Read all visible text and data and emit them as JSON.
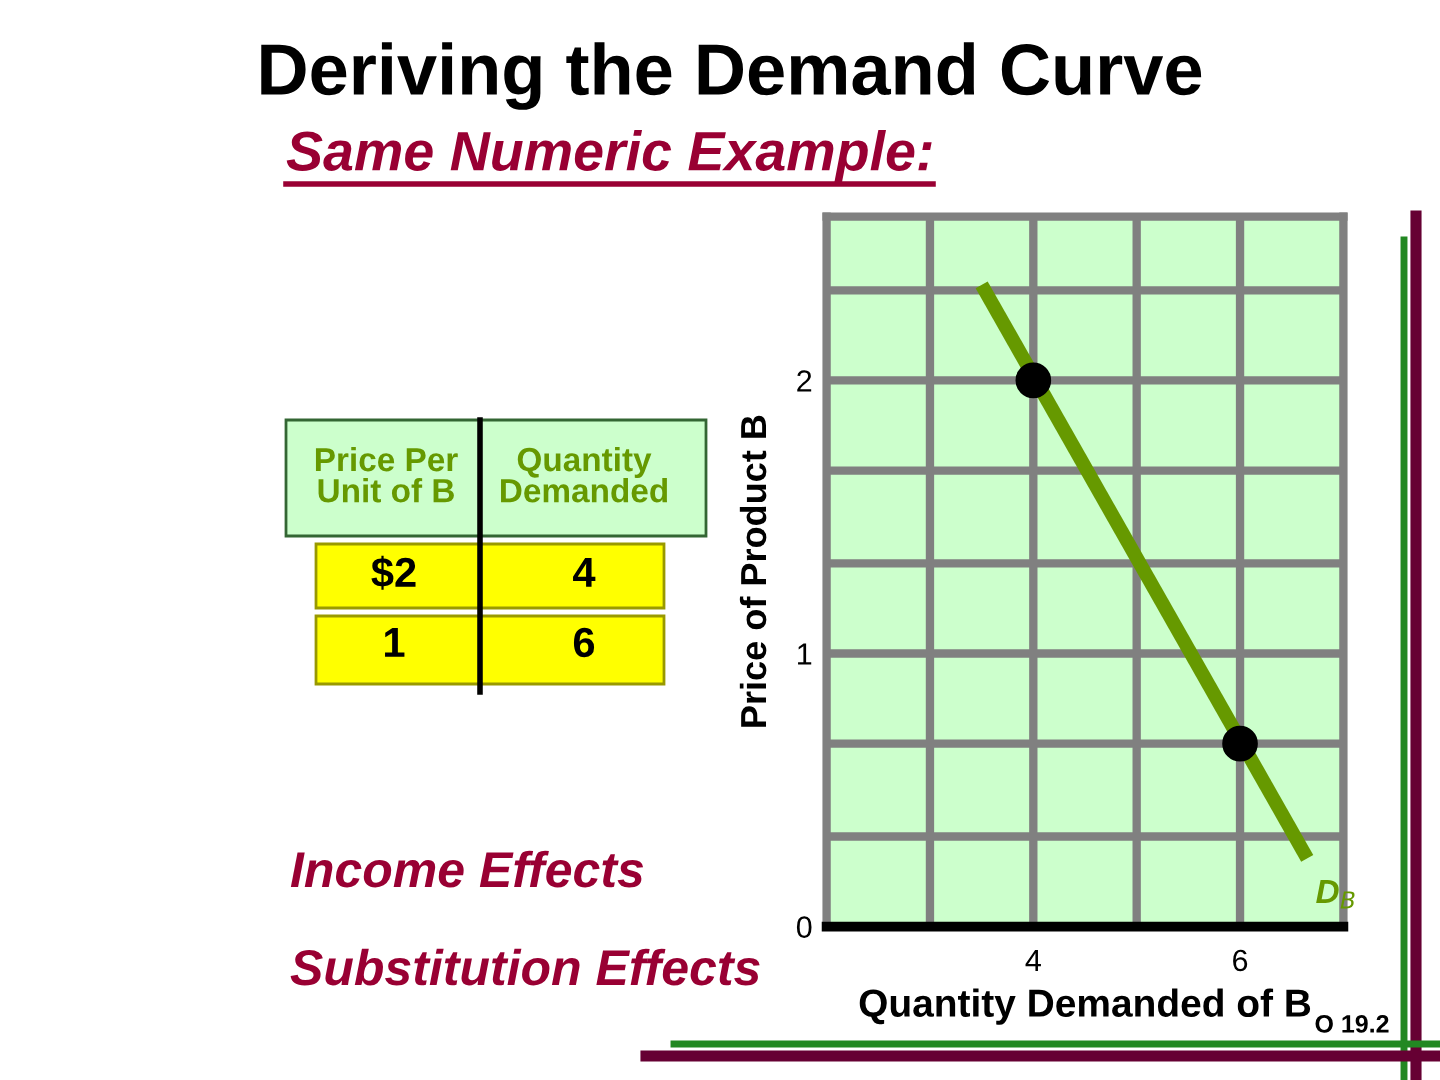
{
  "chart_data": {
    "type": "line",
    "title": "Deriving the Demand Curve",
    "subtitle": "Same Numeric Example:",
    "xlabel": "Quantity Demanded of B",
    "ylabel": "Price of Product B",
    "series": [
      {
        "name": "D$_{B}$",
        "color": "#669900",
        "x": [
          3.5,
          6.65
        ],
        "values": [
          2.35,
          0.25
        ],
        "marker": "none"
      },
      {
        "type": "scatter",
        "color": "#000000",
        "x": [
          4,
          6
        ],
        "values": [
          2,
          0.67
        ],
        "marker": "circle"
      }
    ],
    "xlim": [
      2,
      7
    ],
    "xticks": [
      {
        "value": 3,
        "label": null
      },
      4,
      {
        "value": 5,
        "label": null
      },
      6
    ],
    "ylim": [
      0,
      2.6
    ],
    "yticks": [
      0,
      {
        "value": 0.33,
        "label": null
      },
      {
        "value": 0.67,
        "label": null
      },
      1,
      {
        "value": 1.33,
        "label": null
      },
      {
        "value": 1.67,
        "label": null
      },
      2,
      {
        "value": 2.33,
        "label": null
      }
    ],
    "grid": true,
    "annotations": [
      "Price Per\nUnit of B",
      "Quantity\nDemanded",
      "$2",
      "4",
      "1",
      "6",
      "Income Effects",
      "Substitution Effects",
      "O 19.2"
    ]
  }
}
